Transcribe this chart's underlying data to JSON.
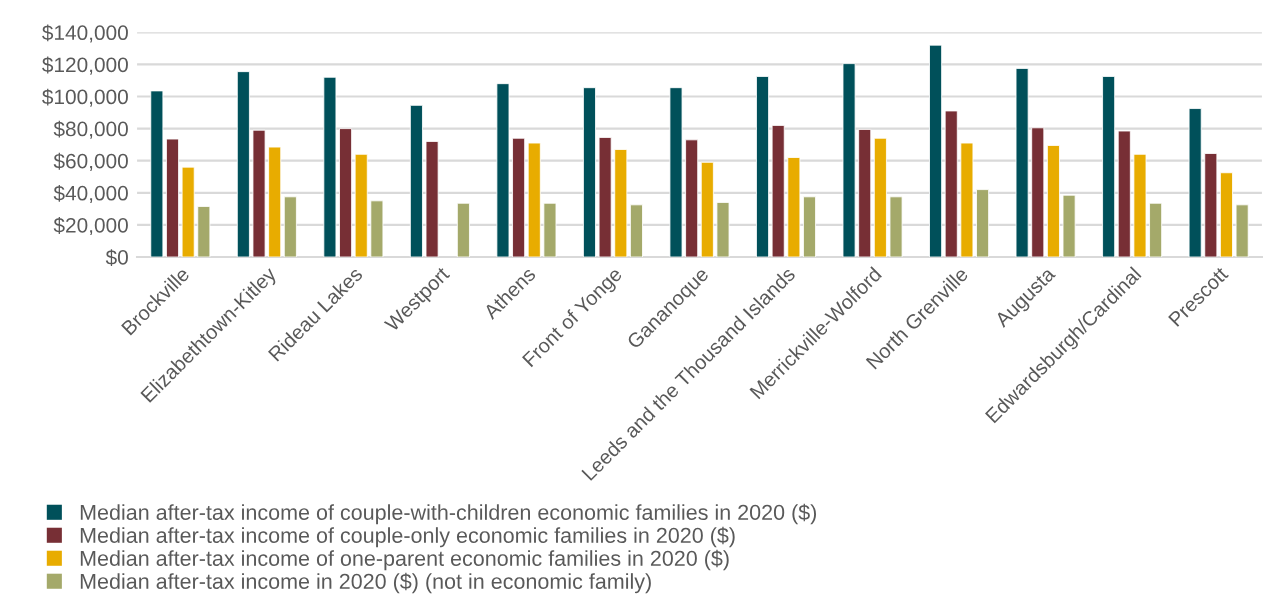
{
  "chart_data": {
    "type": "bar",
    "categories": [
      "Brockville",
      "Elizabethtown-Kitley",
      "Rideau Lakes",
      "Westport",
      "Athens",
      "Front of Yonge",
      "Gananoque",
      "Leeds and the Thousand Islands",
      "Merrickville-Wolford",
      "North Grenville",
      "Augusta",
      "Edwardsburgh/Cardinal",
      "Prescott"
    ],
    "series": [
      {
        "name": "Median after-tax income of couple-with-children economic families in 2020 ($)",
        "color": "#00505a",
        "values": [
          103500,
          115500,
          112000,
          94500,
          108000,
          105500,
          105500,
          112500,
          120500,
          132000,
          117500,
          112500,
          92500
        ]
      },
      {
        "name": "Median after-tax income of couple-only economic families in 2020 ($)",
        "color": "#772f35",
        "values": [
          73500,
          79000,
          80000,
          72000,
          74000,
          74500,
          73000,
          82000,
          79500,
          91000,
          80500,
          78500,
          64500
        ]
      },
      {
        "name": "Median after-tax income of one-parent economic families in 2020 ($)",
        "color": "#e8ac00",
        "values": [
          56000,
          68500,
          64000,
          null,
          71000,
          67000,
          59000,
          62000,
          74000,
          71000,
          69500,
          64000,
          52500
        ]
      },
      {
        "name": "Median after-tax income in 2020 ($) (not in economic family)",
        "color": "#a4a96a",
        "values": [
          31500,
          37500,
          35000,
          33500,
          33500,
          32500,
          34000,
          37500,
          37500,
          42000,
          38500,
          33500,
          32500
        ]
      }
    ],
    "ylim": [
      0,
      140000
    ],
    "yticks": [
      {
        "value": 0,
        "label": "$0"
      },
      {
        "value": 20000,
        "label": "$20,000"
      },
      {
        "value": 40000,
        "label": "$40,000"
      },
      {
        "value": 60000,
        "label": "$60,000"
      },
      {
        "value": 80000,
        "label": "$80,000"
      },
      {
        "value": 100000,
        "label": "$100,000"
      },
      {
        "value": 120000,
        "label": "$120,000"
      },
      {
        "value": 140000,
        "label": "$140,000"
      }
    ],
    "grid": "y",
    "legend": "bottom"
  }
}
